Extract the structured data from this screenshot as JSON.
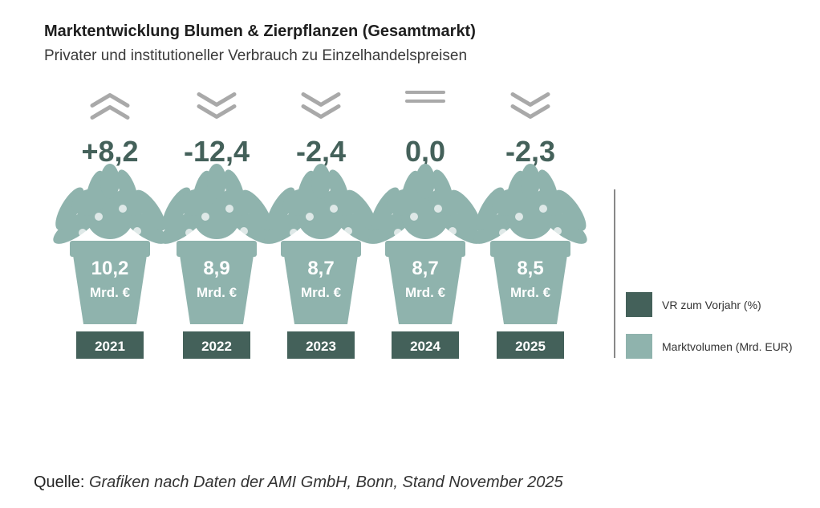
{
  "title": "Marktentwicklung Blumen & Zierpflanzen (Gesamtmarkt)",
  "subtitle": "Privater und institutioneller Verbrauch zu Einzelhandelspreisen",
  "colors": {
    "dark": "#44615a",
    "light": "#8fb3ad",
    "arrow": "#a9a9a9"
  },
  "chart_data": {
    "type": "pictogram",
    "title": "Marktentwicklung Blumen & Zierpflanzen (Gesamtmarkt)",
    "categories": [
      "2021",
      "2022",
      "2023",
      "2024",
      "2025"
    ],
    "series": [
      {
        "name": "VR zum Vorjahr (%)",
        "values": [
          8.2,
          -12.4,
          -2.4,
          0.0,
          -2.3
        ],
        "labels": [
          "+8,2",
          "-12,4",
          "-2,4",
          "0,0",
          "-2,3"
        ],
        "trend": [
          "up",
          "down",
          "down",
          "flat",
          "down"
        ]
      },
      {
        "name": "Marktvolumen (Mrd. EUR)",
        "values": [
          10.2,
          8.9,
          8.7,
          8.7,
          8.5
        ],
        "labels": [
          "10,2",
          "8,9",
          "8,7",
          "8,7",
          "8,5"
        ]
      }
    ],
    "unit_label": "Mrd. €"
  },
  "legend": {
    "items": [
      "VR zum Vorjahr (%)",
      "Marktvolumen (Mrd. EUR)"
    ]
  },
  "source": {
    "label": "Quelle:",
    "text": "Grafiken nach Daten der AMI GmbH, Bonn, Stand November 2025"
  }
}
